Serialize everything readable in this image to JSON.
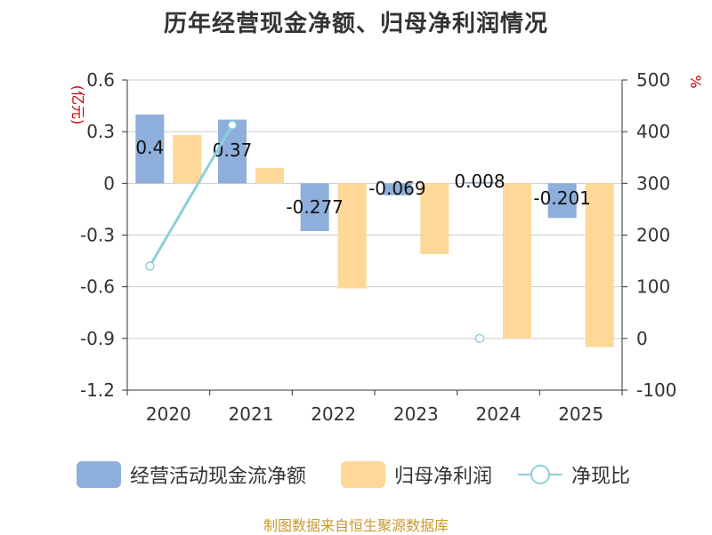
{
  "title": "历年经营现金净额、归母净利润情况",
  "source": "制图数据来自恒生聚源数据库",
  "colors": {
    "cashflow": "#8eaedb",
    "profit": "#fdd898",
    "ratio": "#8ecfd9",
    "axis_unit_left": "#cc0000",
    "axis_unit_right": "#cc0000",
    "source": "#c79a2f"
  },
  "chart_data": {
    "type": "bar",
    "title": "历年经营现金净额、归母净利润情况",
    "categories": [
      "2020",
      "2021",
      "2022",
      "2023",
      "2024",
      "2025"
    ],
    "y_left": {
      "unit": "(亿元)",
      "lim": [
        -1.2,
        0.6
      ],
      "ticks": [
        "0.6",
        "0.3",
        "0",
        "-0.3",
        "-0.6",
        "-0.9",
        "-1.2"
      ],
      "tick_values": [
        0.6,
        0.3,
        0,
        -0.3,
        -0.6,
        -0.9,
        -1.2
      ]
    },
    "y_right": {
      "unit": "%",
      "lim": [
        -100,
        500
      ],
      "ticks": [
        "500",
        "400",
        "300",
        "200",
        "100",
        "0",
        "-100"
      ],
      "tick_values": [
        500,
        400,
        300,
        200,
        100,
        0,
        -100
      ]
    },
    "series": [
      {
        "name": "经营活动现金流净额",
        "type": "bar",
        "axis": "left",
        "values": [
          0.4,
          0.37,
          -0.277,
          -0.069,
          0.008,
          -0.201
        ],
        "labels": [
          "0.4",
          "0.37",
          "-0.277",
          "-0.069",
          "0.008",
          "-0.201"
        ]
      },
      {
        "name": "归母净利润",
        "type": "bar",
        "axis": "left",
        "values": [
          0.28,
          0.09,
          -0.61,
          -0.41,
          -0.9,
          -0.95
        ]
      },
      {
        "name": "净现比",
        "type": "line",
        "axis": "right",
        "values": [
          140,
          413,
          null,
          null,
          0,
          null
        ]
      }
    ],
    "grid": true,
    "legend_position": "bottom"
  }
}
